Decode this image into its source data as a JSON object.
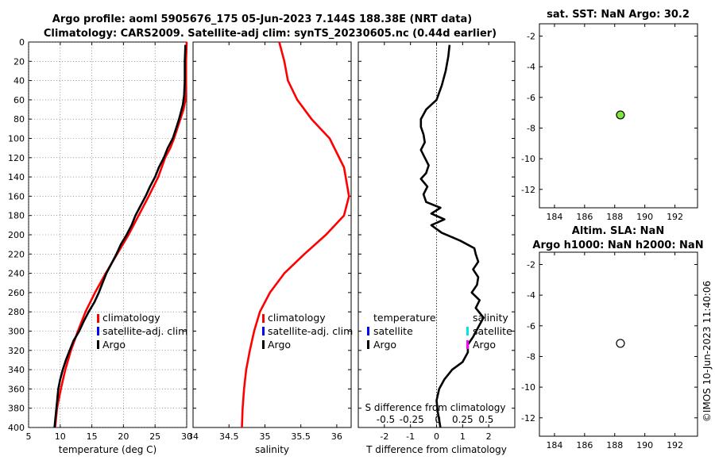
{
  "titles": {
    "main_line1": "Argo profile: aoml 5905676_175 05-Jun-2023 7.144S 188.38E (NRT data)",
    "main_line2": "Climatology: CARS2009. Satellite-adj clim: synTS_20230605.nc (0.44d earlier)",
    "sst": "sat. SST: NaN Argo: 30.2",
    "altim_line1": "Altim. SLA: NaN",
    "altim_line2": "Argo h1000: NaN h2000: NaN",
    "timestamp": "©IMOS 10-Jun-2023 11:40:06"
  },
  "colors": {
    "climatology": "#ff0000",
    "satellite": "#0000ff",
    "argo": "#000000",
    "sal_satellite": "#00e5e5",
    "sal_argo": "#ff00ff",
    "marker_fill": "#7ee83a"
  },
  "chart_data": [
    {
      "id": "temperature",
      "type": "line",
      "xlabel": "temperature (deg C)",
      "ylabel": "",
      "xlim": [
        5,
        30
      ],
      "ylim": [
        400,
        0
      ],
      "xticks": [
        "5",
        "10",
        "15",
        "20",
        "25",
        "30"
      ],
      "xtick_values": [
        5,
        10,
        15,
        20,
        25,
        30
      ],
      "yticks": [
        "0",
        "20",
        "40",
        "60",
        "80",
        "100",
        "120",
        "140",
        "160",
        "180",
        "200",
        "220",
        "240",
        "260",
        "280",
        "300",
        "320",
        "340",
        "360",
        "380",
        "400"
      ],
      "ytick_values": [
        0,
        20,
        40,
        60,
        80,
        100,
        120,
        140,
        160,
        180,
        200,
        220,
        240,
        260,
        280,
        300,
        320,
        340,
        360,
        380,
        400
      ],
      "legend": [
        "climatology",
        "satellite-adj. clim",
        "Argo"
      ],
      "series": [
        {
          "name": "climatology",
          "color": "#ff0000",
          "x": [
            30.0,
            29.9,
            29.9,
            29.8,
            29.5,
            29.0,
            28.5,
            28.0,
            27.4,
            26.6,
            25.5,
            24.0,
            22.4,
            20.8,
            19.0,
            17.2,
            15.5,
            14.0,
            12.8,
            11.7,
            10.8,
            10.1,
            9.5,
            9.2
          ],
          "y": [
            0,
            20,
            40,
            60,
            70,
            80,
            90,
            100,
            110,
            120,
            140,
            160,
            180,
            200,
            220,
            240,
            260,
            280,
            300,
            320,
            340,
            360,
            380,
            400
          ]
        },
        {
          "name": "Argo",
          "color": "#000000",
          "x": [
            29.8,
            29.7,
            29.7,
            29.6,
            29.4,
            28.8,
            28.3,
            27.8,
            27.0,
            26.4,
            25.6,
            25.0,
            24.2,
            23.5,
            22.7,
            21.9,
            21.3,
            20.5,
            19.6,
            18.9,
            18.1,
            17.3,
            16.7,
            16.1,
            15.4,
            14.5,
            13.7,
            13.0,
            12.1,
            11.5,
            10.9,
            10.4,
            10.0,
            9.7,
            9.4,
            9.1
          ],
          "y": [
            3,
            20,
            40,
            55,
            65,
            80,
            90,
            100,
            110,
            120,
            130,
            140,
            150,
            160,
            170,
            180,
            190,
            200,
            210,
            220,
            230,
            240,
            250,
            260,
            270,
            280,
            290,
            300,
            310,
            320,
            330,
            340,
            350,
            360,
            380,
            400
          ]
        }
      ]
    },
    {
      "id": "salinity",
      "type": "line",
      "xlabel": "salinity",
      "ylabel": "",
      "xlim": [
        34,
        36.2
      ],
      "ylim": [
        400,
        0
      ],
      "xticks": [
        "34",
        "34.5",
        "35",
        "35.5",
        "36"
      ],
      "xtick_values": [
        34,
        34.5,
        35,
        35.5,
        36
      ],
      "legend": [
        "climatology",
        "satellite-adj. clim",
        "Argo"
      ],
      "series": [
        {
          "name": "climatology",
          "color": "#ff0000",
          "x": [
            35.2,
            35.27,
            35.32,
            35.45,
            35.65,
            35.9,
            36.1,
            36.17,
            36.1,
            35.85,
            35.55,
            35.27,
            35.07,
            34.93,
            34.85,
            34.79,
            34.74,
            34.71,
            34.69,
            34.68
          ],
          "y": [
            0,
            20,
            40,
            60,
            80,
            100,
            130,
            160,
            180,
            200,
            220,
            240,
            260,
            280,
            300,
            320,
            340,
            360,
            380,
            400
          ]
        }
      ]
    },
    {
      "id": "difference",
      "type": "line",
      "xlabel": "T difference from climatology",
      "top_label": "S difference from climatology",
      "xlim": [
        -3,
        3
      ],
      "ylim": [
        400,
        0
      ],
      "xticks": [
        "-2",
        "-1",
        "0",
        "1",
        "2"
      ],
      "xtick_values": [
        -2,
        -1,
        0,
        1,
        2
      ],
      "sticks": [
        "-0.5",
        "-0.25",
        "0",
        "0.25",
        "0.5"
      ],
      "stick_values": [
        -1.95,
        -0.95,
        0.05,
        1.0,
        1.9
      ],
      "legend_temperature": [
        "temperature",
        "satellite",
        "Argo"
      ],
      "legend_salinity": [
        "salinity",
        "satellite",
        "Argo"
      ],
      "series": [
        {
          "name": "T difference (Argo)",
          "color": "#000000",
          "x": [
            0.5,
            0.45,
            0.35,
            0.2,
            0.0,
            -0.4,
            -0.6,
            -0.6,
            -0.5,
            -0.45,
            -0.6,
            -0.45,
            -0.3,
            -0.4,
            -0.6,
            -0.35,
            -0.5,
            -0.4,
            0.15,
            -0.2,
            0.3,
            -0.2,
            0.2,
            0.9,
            1.45,
            1.5,
            1.6,
            1.4,
            1.6,
            1.55,
            1.35,
            1.65,
            1.5,
            1.8,
            1.6,
            1.4,
            1.2,
            1.2,
            1.0,
            0.6,
            0.3,
            0.1,
            0.0,
            0.05,
            0.15
          ],
          "y": [
            3,
            15,
            30,
            45,
            60,
            70,
            80,
            88,
            96,
            104,
            112,
            120,
            128,
            136,
            142,
            150,
            158,
            166,
            172,
            178,
            184,
            190,
            198,
            206,
            214,
            220,
            228,
            236,
            244,
            252,
            260,
            268,
            276,
            286,
            296,
            306,
            314,
            322,
            332,
            340,
            350,
            360,
            372,
            384,
            400
          ]
        }
      ]
    },
    {
      "id": "sst_position",
      "type": "scatter",
      "xlim": [
        183,
        193.5
      ],
      "ylim": [
        -13.2,
        -1.2
      ],
      "xticks": [
        "184",
        "186",
        "188",
        "190",
        "192"
      ],
      "xtick_values": [
        184,
        186,
        188,
        190,
        192
      ],
      "yticks": [
        "-2",
        "-4",
        "-6",
        "-8",
        "-10",
        "-12"
      ],
      "ytick_values": [
        -2,
        -4,
        -6,
        -8,
        -10,
        -12
      ],
      "points": [
        {
          "x": 188.38,
          "y": -7.144,
          "fill": "#7ee83a"
        }
      ]
    },
    {
      "id": "altim_position",
      "type": "scatter",
      "xlim": [
        183,
        193.5
      ],
      "ylim": [
        -13.2,
        -1.2
      ],
      "xticks": [
        "184",
        "186",
        "188",
        "190",
        "192"
      ],
      "xtick_values": [
        184,
        186,
        188,
        190,
        192
      ],
      "yticks": [
        "-2",
        "-4",
        "-6",
        "-8",
        "-10",
        "-12"
      ],
      "ytick_values": [
        -2,
        -4,
        -6,
        -8,
        -10,
        -12
      ],
      "points": [
        {
          "x": 188.38,
          "y": -7.144,
          "fill": "#ffffff"
        }
      ]
    }
  ]
}
